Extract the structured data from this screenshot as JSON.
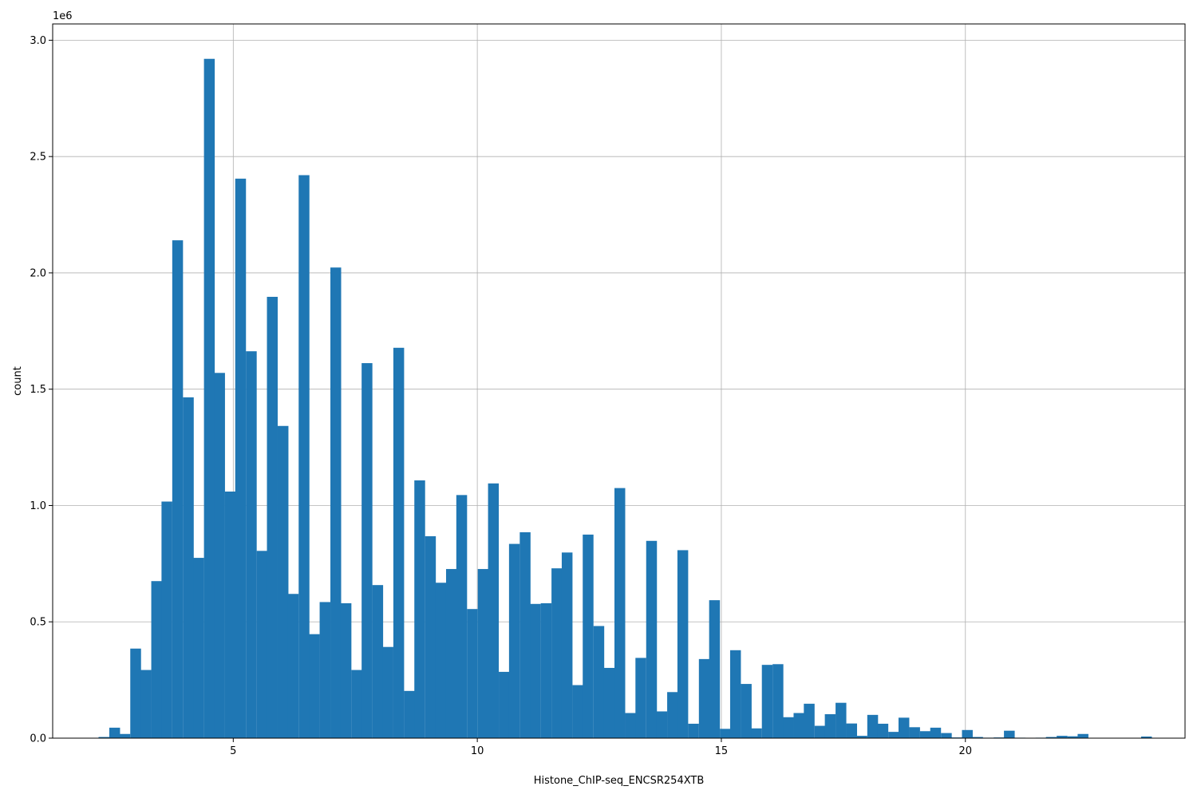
{
  "chart_data": {
    "type": "bar",
    "xlabel": "Histone_ChIP-seq_ENCSR254XTB",
    "ylabel": "count",
    "y_offset_label": "1e6",
    "xlim": [
      1.3,
      24.5
    ],
    "ylim": [
      0,
      3.07
    ],
    "y_unit_multiplier": 1000000,
    "grid": true,
    "bar_color": "#1f77b4",
    "bin_width": 0.2155,
    "xticks": [
      5,
      10,
      15,
      20
    ],
    "yticks": [
      0.0,
      0.5,
      1.0,
      1.5,
      2.0,
      2.5,
      3.0
    ],
    "xtick_labels": [
      "5",
      "10",
      "15",
      "20"
    ],
    "ytick_labels": [
      "0.0",
      "0.5",
      "1.0",
      "1.5",
      "2.0",
      "2.5",
      "3.0"
    ],
    "bins_start": [
      2.24,
      2.46,
      2.67,
      2.89,
      3.1,
      3.32,
      3.53,
      3.75,
      3.97,
      4.18,
      4.4,
      4.61,
      4.83,
      5.04,
      5.26,
      5.48,
      5.69,
      5.91,
      6.12,
      6.34,
      6.55,
      6.77,
      6.99,
      7.2,
      7.42,
      7.63,
      7.85,
      8.06,
      8.28,
      8.5,
      8.71,
      8.93,
      9.14,
      9.36,
      9.57,
      9.79,
      10.01,
      10.22,
      10.44,
      10.65,
      10.87,
      11.08,
      11.3,
      11.52,
      11.73,
      11.95,
      12.16,
      12.38,
      12.59,
      12.81,
      13.03,
      13.24,
      13.46,
      13.67,
      13.89,
      14.1,
      14.32,
      14.54,
      14.75,
      14.97,
      15.18,
      15.4,
      15.61,
      15.83,
      16.05,
      16.26,
      16.48,
      16.69,
      16.91,
      17.12,
      17.34,
      17.56,
      17.77,
      17.99,
      18.2,
      18.42,
      18.63,
      18.85,
      19.07,
      19.28,
      19.5,
      19.71,
      19.93,
      20.14,
      20.36,
      20.58,
      20.79,
      21.01,
      21.22,
      21.44,
      21.65,
      21.87,
      22.09,
      22.3,
      22.52,
      22.73,
      22.95,
      23.16,
      23.38,
      23.6
    ],
    "values": [
      0.005,
      0.045,
      0.018,
      0.385,
      0.293,
      0.675,
      1.017,
      2.14,
      1.465,
      0.775,
      2.92,
      1.57,
      1.06,
      2.405,
      1.663,
      0.805,
      1.897,
      1.342,
      0.62,
      2.42,
      0.447,
      0.585,
      2.023,
      0.58,
      0.293,
      1.612,
      0.658,
      0.392,
      1.678,
      0.203,
      1.108,
      0.868,
      0.668,
      0.727,
      1.045,
      0.555,
      0.727,
      1.095,
      0.285,
      0.835,
      0.885,
      0.577,
      0.58,
      0.73,
      0.798,
      0.228,
      0.875,
      0.482,
      0.302,
      1.075,
      0.108,
      0.345,
      0.848,
      0.115,
      0.198,
      0.808,
      0.062,
      0.34,
      0.593,
      0.04,
      0.378,
      0.233,
      0.042,
      0.315,
      0.318,
      0.09,
      0.108,
      0.148,
      0.053,
      0.103,
      0.152,
      0.063,
      0.01,
      0.1,
      0.062,
      0.027,
      0.088,
      0.047,
      0.03,
      0.045,
      0.022,
      0.003,
      0.035,
      0.005,
      0.002,
      0.003,
      0.032,
      0.002,
      0.001,
      0.002,
      0.005,
      0.01,
      0.008,
      0.018,
      0.001,
      0.001,
      0.001,
      0.001,
      0.001,
      0.007
    ]
  }
}
